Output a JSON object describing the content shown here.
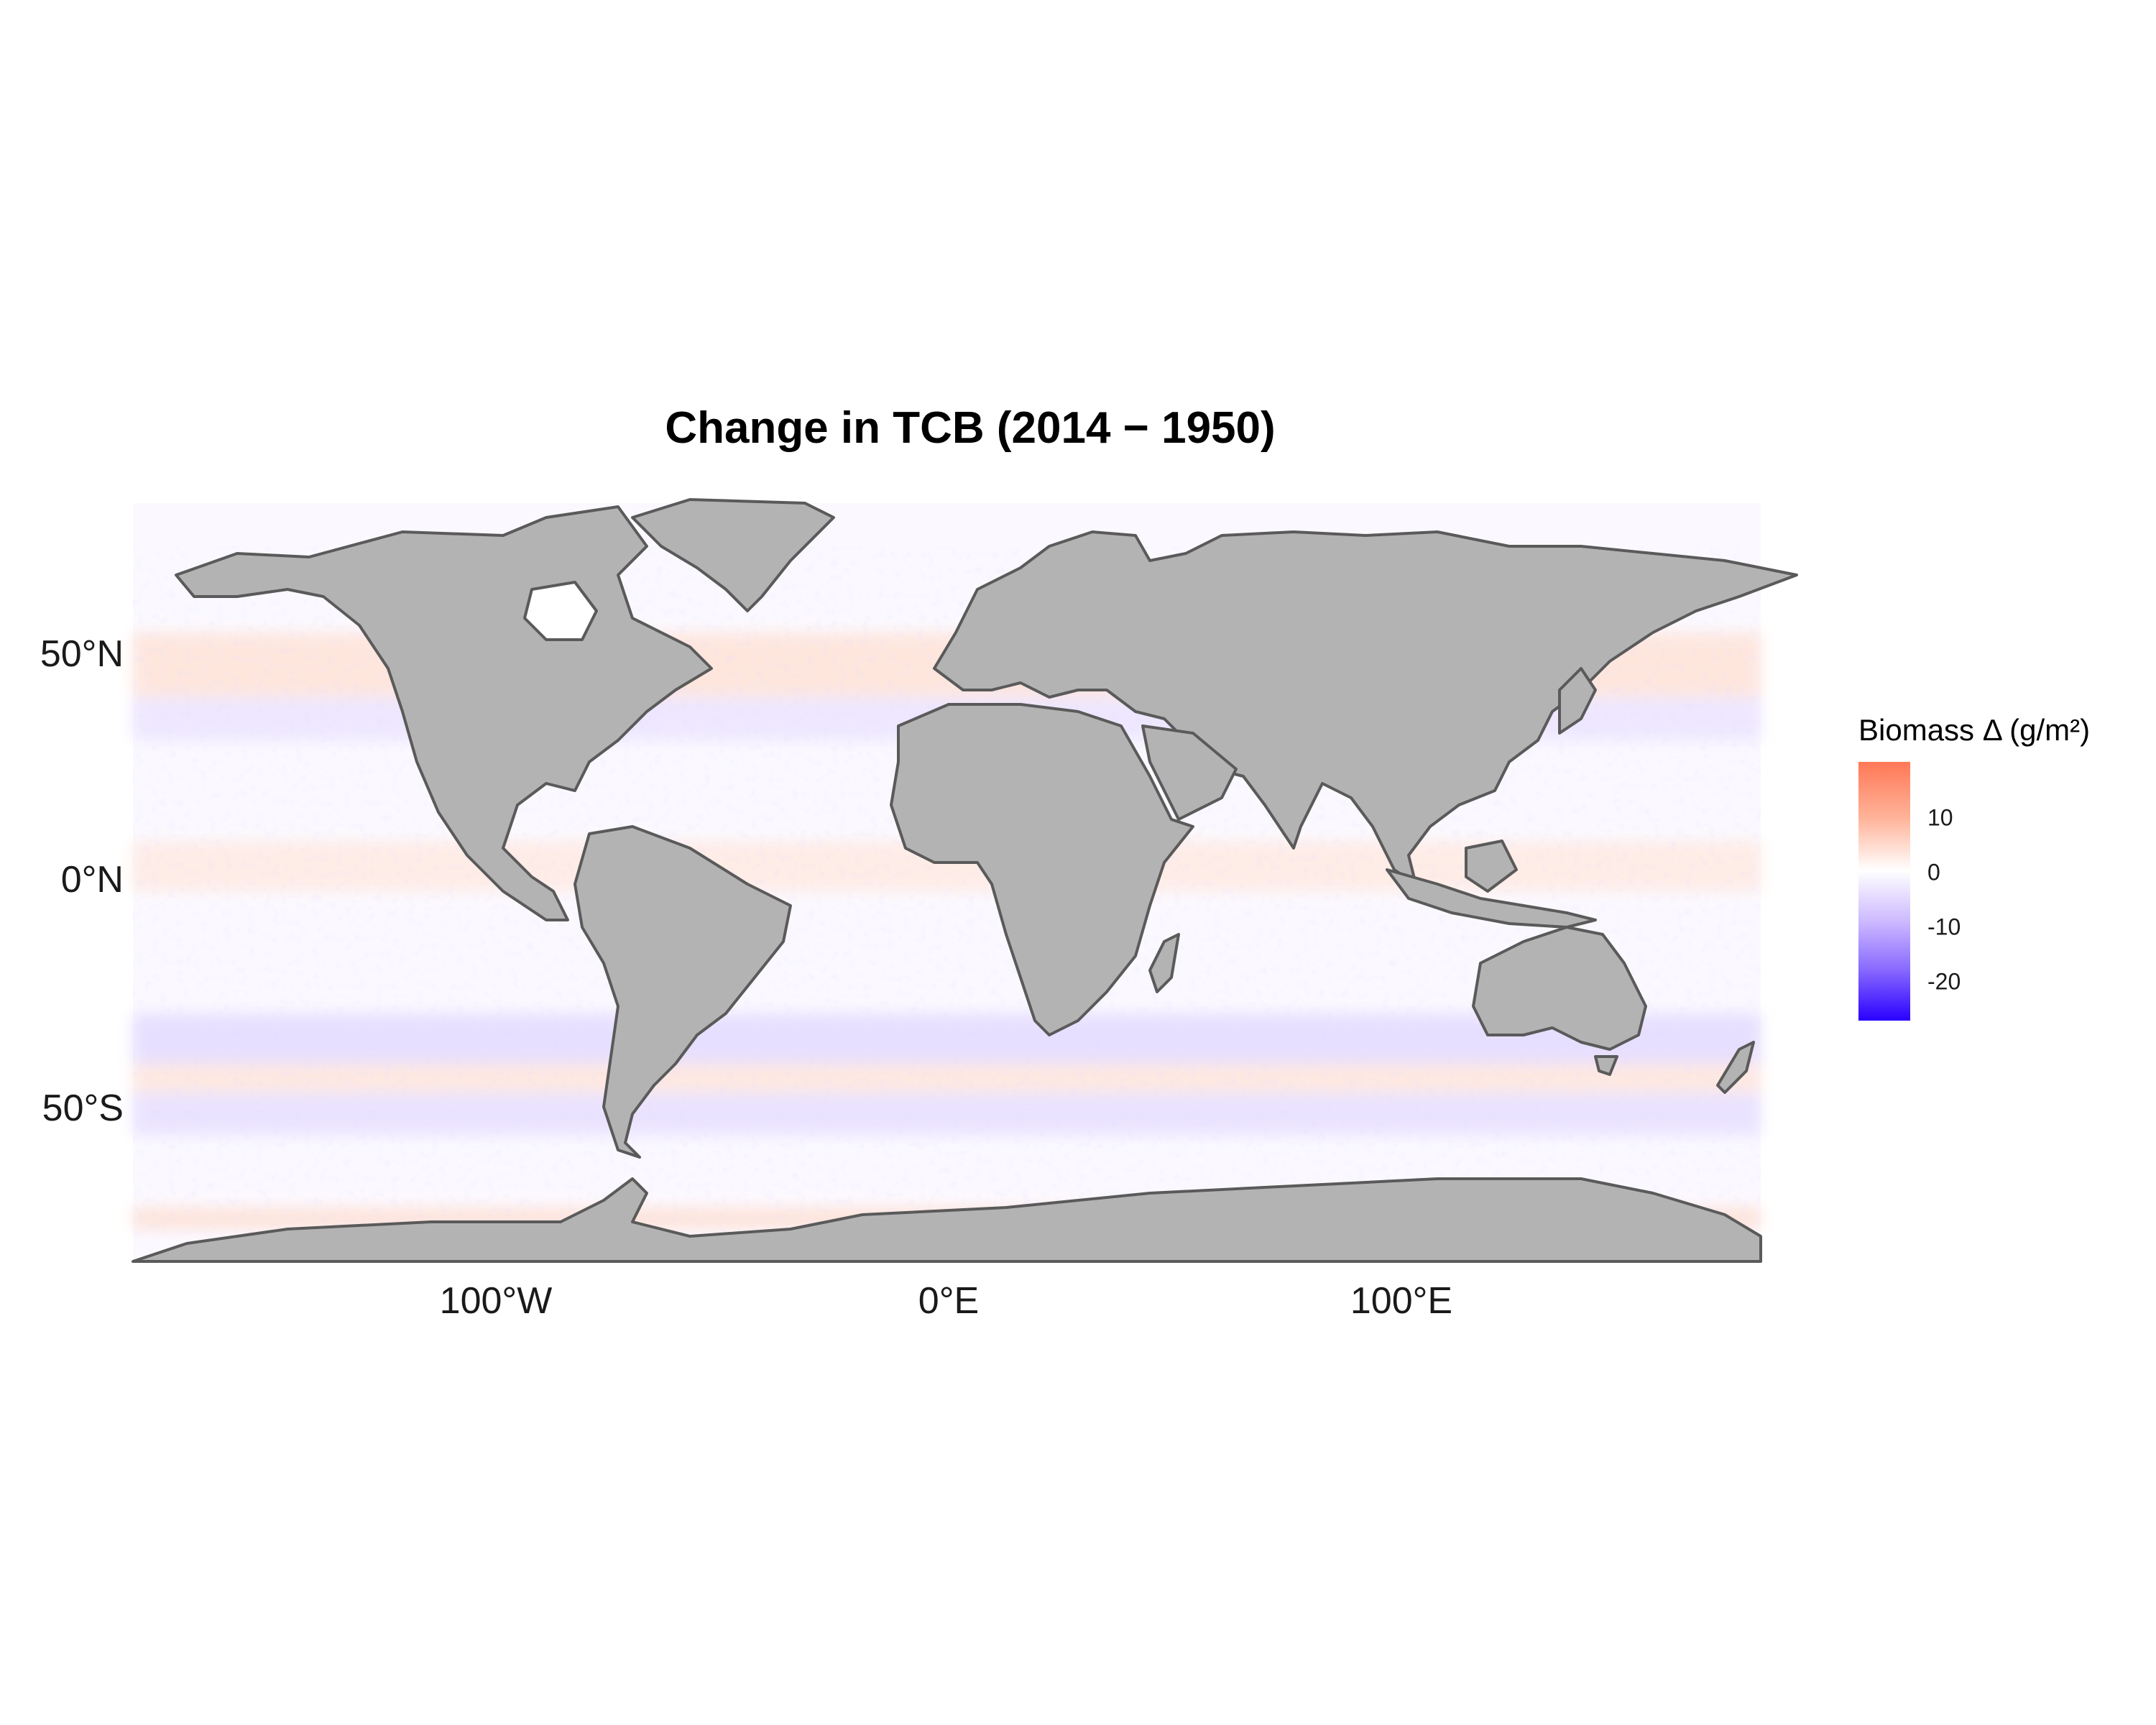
{
  "map": {
    "title": "Change in TCB (2014 − 1950)",
    "latitude_labels": [
      "50°N",
      "0°N",
      "50°S"
    ],
    "longitude_labels": [
      "100°W",
      "0°E",
      "100°E"
    ],
    "legend": {
      "title": "Biomass Δ (g/m²)",
      "ticks": [
        "10",
        "0",
        "-10",
        "-20"
      ],
      "colors": {
        "high": "#ff7856",
        "mid": "#ffffff",
        "low": "#2a00ff"
      }
    },
    "colors": {
      "land": "#b3b3b3",
      "border": "#5a5a5a",
      "ocean": "#ffffff"
    }
  }
}
